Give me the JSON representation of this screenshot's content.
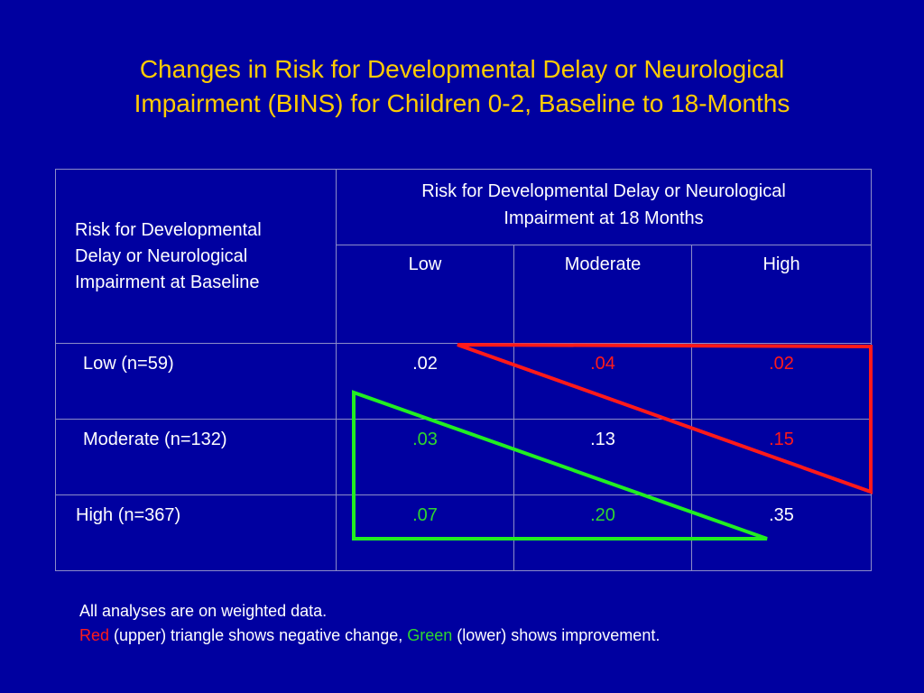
{
  "title": {
    "line1": "Changes in Risk for Developmental Delay or Neurological",
    "line2": "Impairment (BINS) for Children 0-2, Baseline to 18-Months"
  },
  "table": {
    "corner_label": {
      "line1": "Risk for Developmental",
      "line2": "Delay or Neurological",
      "line3": "Impairment at Baseline"
    },
    "span_header": {
      "line1": "Risk for Developmental Delay or Neurological",
      "line2": "Impairment at 18 Months"
    },
    "columns": [
      "Low",
      "Moderate",
      "High"
    ],
    "rows": [
      {
        "label": "Low (n=59)",
        "values": [
          ".02",
          ".04",
          ".02"
        ]
      },
      {
        "label": "Moderate (n=132)",
        "values": [
          ".03",
          ".13",
          ".15"
        ]
      },
      {
        "label": "High (n=367)",
        "values": [
          ".07",
          ".20",
          ".35"
        ]
      }
    ]
  },
  "colors": {
    "background": "#0000a0",
    "title": "#ffcc00",
    "red_triangle": "#ff1a1a",
    "green_triangle": "#22ee22"
  },
  "footnote": {
    "line1": "All analyses are on weighted data.",
    "red_word": "Red",
    "red_rest": " (upper) triangle shows negative change, ",
    "green_word": "Green",
    "green_rest": " (lower) shows improvement."
  }
}
